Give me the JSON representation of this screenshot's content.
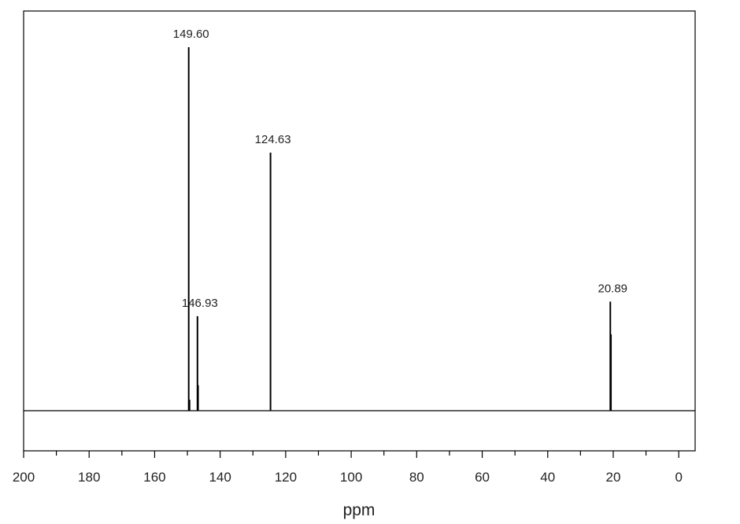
{
  "chart_data": {
    "type": "line",
    "title": "",
    "xlabel": "ppm",
    "ylabel": "",
    "xlim": [
      200,
      -5
    ],
    "x_reversed": true,
    "ylim": [
      -0.12,
      1.0
    ],
    "grid": false,
    "x_ticks": [
      200,
      180,
      160,
      140,
      120,
      100,
      80,
      60,
      40,
      20,
      0
    ],
    "x_tick_labels": [
      "200",
      "180",
      "160",
      "140",
      "120",
      "100",
      "80",
      "60",
      "40",
      "20",
      "0"
    ],
    "series": [
      {
        "style": "stick-spectrum",
        "peaks": [
          {
            "ppm": 149.6,
            "height": 1.0,
            "label": "149.60"
          },
          {
            "ppm": 149.35,
            "height": 0.03,
            "label": ""
          },
          {
            "ppm": 146.93,
            "height": 0.26,
            "label": "146.93"
          },
          {
            "ppm": 146.75,
            "height": 0.07,
            "label": ""
          },
          {
            "ppm": 124.63,
            "height": 0.71,
            "label": "124.63"
          },
          {
            "ppm": 20.89,
            "height": 0.3,
            "label": "20.89"
          },
          {
            "ppm": 20.7,
            "height": 0.21,
            "label": ""
          }
        ]
      }
    ],
    "colors": {
      "line": "#000000",
      "text": "#222222"
    }
  }
}
